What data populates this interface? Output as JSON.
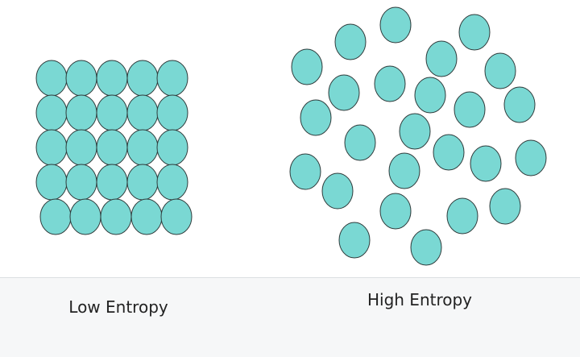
{
  "particle_color": "#7ad8d3",
  "particle_outline": "#2f3b3b",
  "caption_band_color": "#f6f7f8",
  "panels": [
    {
      "id": "low",
      "caption": "Low Entropy",
      "arrangement": "ordered 5x5 grid of particles",
      "particle_count": 25
    },
    {
      "id": "high",
      "caption": "High Entropy",
      "arrangement": "randomly scattered particles",
      "particle_count": 29
    }
  ]
}
